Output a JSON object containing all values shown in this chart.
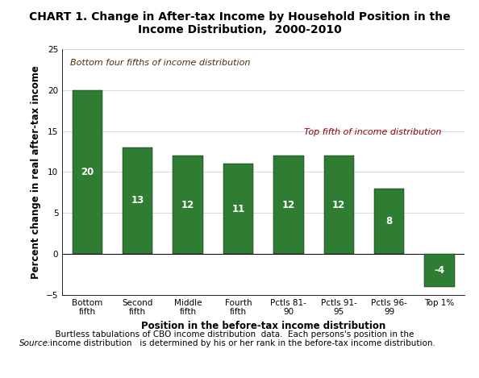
{
  "title": "CHART 1. Change in After-tax Income by Household Position in the\nIncome Distribution,  2000-2010",
  "xlabel": "Position in the before-tax income distribution",
  "ylabel": "Percent change in real after-tax income",
  "categories": [
    "Bottom\nfifth",
    "Second\nfifth",
    "Middle\nfifth",
    "Fourth\nfifth",
    "Pctls 81-\n90",
    "Pctls 91-\n95",
    "Pctls 96-\n99",
    "Top 1%"
  ],
  "values": [
    20,
    13,
    12,
    11,
    12,
    12,
    8,
    -4
  ],
  "bar_color": "#2e7d32",
  "ylim": [
    -5,
    25
  ],
  "yticks": [
    -5,
    0,
    5,
    10,
    15,
    20,
    25
  ],
  "annotation_bottom4": "Bottom four fifths of income distribution",
  "annotation_top": "Top fifth of income distribution",
  "annotation_bottom4_color": "#4B2E05",
  "annotation_top_color": "#8B0000",
  "source_italic": "Source:",
  "source_rest": "  Burtless tabulations of CBO income distribution  data.  Each persons's position in the\nincome distribution   is determined by his or her rank in the before-tax income distribution.",
  "label_color": "#ffffff",
  "label_fontsize": 8.5,
  "title_fontsize": 10,
  "axis_label_fontsize": 8.5,
  "tick_label_fontsize": 7.5,
  "source_fontsize": 7.5
}
